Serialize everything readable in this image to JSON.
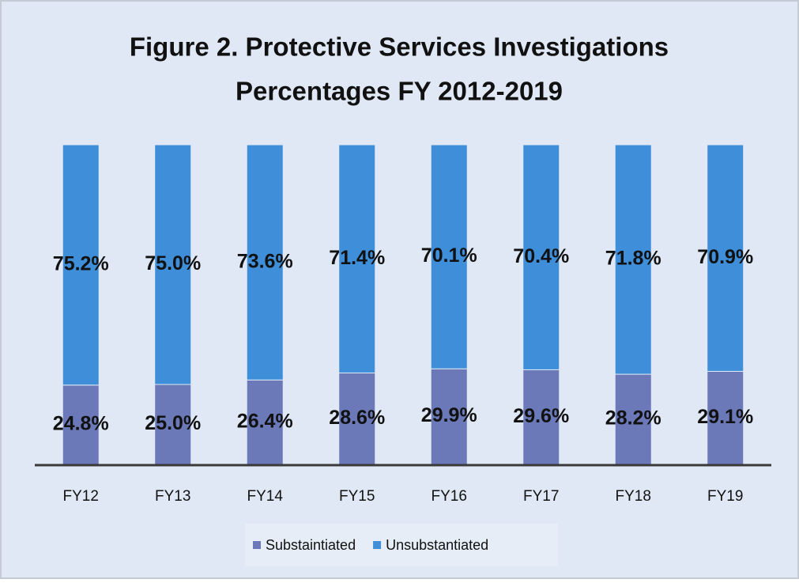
{
  "chart_data": {
    "type": "stacked_bar",
    "title": [
      "Figure 2. Protective Services Investigations",
      "Percentages FY 2012-2019"
    ],
    "categories": [
      "FY12",
      "FY13",
      "FY14",
      "FY15",
      "FY16",
      "FY17",
      "FY18",
      "FY19"
    ],
    "series": [
      {
        "name": "Substaintiated",
        "color": "#6b79b9",
        "values": [
          24.8,
          25.0,
          26.4,
          28.6,
          29.9,
          29.6,
          28.2,
          29.1
        ],
        "value_labels": [
          "24.8%",
          "25.0%",
          "26.4%",
          "28.6%",
          "29.9%",
          "29.6%",
          "28.2%",
          "29.1%"
        ]
      },
      {
        "name": "Unsubstantiated",
        "color": "#3e8ed9",
        "values": [
          75.2,
          75.0,
          73.6,
          71.4,
          70.1,
          70.4,
          71.8,
          70.9
        ],
        "value_labels": [
          "75.2%",
          "75.0%",
          "73.6%",
          "71.4%",
          "70.1%",
          "70.4%",
          "71.8%",
          "70.9%"
        ]
      }
    ],
    "legend": "bottom"
  }
}
